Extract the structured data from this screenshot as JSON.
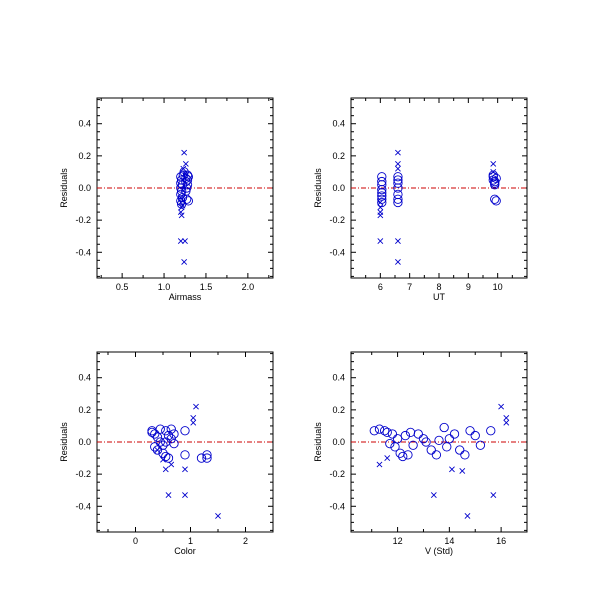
{
  "colors": {
    "markers": "#0000cc",
    "reference_line": "#cc0000",
    "axes": "#000000"
  },
  "chart_data": [
    {
      "type": "scatter",
      "title": "",
      "xlabel": "Airmass",
      "ylabel": "Residuals",
      "xlim": [
        0.2,
        2.3
      ],
      "ylim": [
        -0.56,
        0.56
      ],
      "xticks": [
        0.5,
        1.0,
        1.5,
        2.0
      ],
      "xticklabels": [
        "0.5",
        "1.0",
        "1.5",
        "2.0"
      ],
      "yticks": [
        -0.4,
        -0.2,
        0.0,
        0.2,
        0.4
      ],
      "yticklabels": [
        "-0.4",
        "-0.2",
        "0.0",
        "0.2",
        "0.4"
      ],
      "reference_line": 0.0,
      "series": [
        {
          "marker": "circle",
          "points": [
            [
              1.2,
              0.07
            ],
            [
              1.21,
              0.05
            ],
            [
              1.2,
              0.03
            ],
            [
              1.22,
              0.02
            ],
            [
              1.2,
              0.0
            ],
            [
              1.21,
              -0.02
            ],
            [
              1.2,
              -0.04
            ],
            [
              1.22,
              -0.06
            ],
            [
              1.2,
              -0.08
            ],
            [
              1.21,
              -0.1
            ],
            [
              1.26,
              0.06
            ],
            [
              1.28,
              0.08
            ],
            [
              1.26,
              0.04
            ],
            [
              1.28,
              0.02
            ],
            [
              1.27,
              0.0
            ],
            [
              1.26,
              -0.02
            ],
            [
              1.28,
              0.05
            ],
            [
              1.29,
              0.07
            ],
            [
              1.24,
              0.1
            ],
            [
              1.27,
              -0.07
            ],
            [
              1.29,
              -0.08
            ],
            [
              1.23,
              0.08
            ]
          ]
        },
        {
          "marker": "x",
          "points": [
            [
              1.2,
              -0.06
            ],
            [
              1.2,
              -0.09
            ],
            [
              1.21,
              -0.12
            ],
            [
              1.2,
              -0.15
            ],
            [
              1.21,
              -0.17
            ],
            [
              1.22,
              -0.11
            ],
            [
              1.2,
              -0.33
            ],
            [
              1.25,
              -0.33
            ],
            [
              1.24,
              -0.46
            ],
            [
              1.24,
              0.22
            ],
            [
              1.26,
              0.15
            ],
            [
              1.23,
              0.12
            ],
            [
              1.25,
              0.09
            ]
          ]
        }
      ]
    },
    {
      "type": "scatter",
      "title": "",
      "xlabel": "UT",
      "ylabel": "Residuals",
      "xlim": [
        5.0,
        11.0
      ],
      "ylim": [
        -0.56,
        0.56
      ],
      "xticks": [
        6,
        7,
        8,
        9,
        10
      ],
      "xticklabels": [
        "6",
        "7",
        "8",
        "9",
        "10"
      ],
      "yticks": [
        -0.4,
        -0.2,
        0.0,
        0.2,
        0.4
      ],
      "yticklabels": [
        "-0.4",
        "-0.2",
        "0.0",
        "0.2",
        "0.4"
      ],
      "reference_line": 0.0,
      "series": [
        {
          "marker": "circle",
          "points": [
            [
              6.05,
              0.07
            ],
            [
              6.05,
              0.04
            ],
            [
              6.05,
              0.02
            ],
            [
              6.05,
              -0.01
            ],
            [
              6.05,
              -0.03
            ],
            [
              6.05,
              -0.05
            ],
            [
              6.05,
              -0.07
            ],
            [
              6.05,
              -0.09
            ],
            [
              6.6,
              0.07
            ],
            [
              6.6,
              0.05
            ],
            [
              6.6,
              0.03
            ],
            [
              6.6,
              0.0
            ],
            [
              6.6,
              -0.04
            ],
            [
              6.6,
              -0.07
            ],
            [
              6.6,
              -0.09
            ],
            [
              9.85,
              0.07
            ],
            [
              9.85,
              0.05
            ],
            [
              9.9,
              0.03
            ],
            [
              9.9,
              0.02
            ],
            [
              9.95,
              0.06
            ],
            [
              9.85,
              0.08
            ],
            [
              9.9,
              -0.07
            ],
            [
              9.95,
              -0.08
            ],
            [
              9.9,
              0.04
            ]
          ]
        },
        {
          "marker": "x",
          "points": [
            [
              6.0,
              -0.09
            ],
            [
              6.0,
              -0.12
            ],
            [
              6.0,
              -0.15
            ],
            [
              6.0,
              -0.17
            ],
            [
              6.0,
              -0.33
            ],
            [
              6.6,
              -0.33
            ],
            [
              6.6,
              -0.46
            ],
            [
              6.6,
              0.22
            ],
            [
              6.6,
              0.15
            ],
            [
              6.6,
              0.12
            ],
            [
              9.85,
              0.15
            ],
            [
              9.85,
              0.1
            ]
          ]
        }
      ]
    },
    {
      "type": "scatter",
      "title": "",
      "xlabel": "Color",
      "ylabel": "Residuals",
      "xlim": [
        -0.7,
        2.5
      ],
      "ylim": [
        -0.56,
        0.56
      ],
      "xticks": [
        0,
        1,
        2
      ],
      "xticklabels": [
        "0",
        "1",
        "2"
      ],
      "yticks": [
        -0.4,
        -0.2,
        0.0,
        0.2,
        0.4
      ],
      "yticklabels": [
        "-0.4",
        "-0.2",
        "0.0",
        "0.2",
        "0.4"
      ],
      "reference_line": 0.0,
      "series": [
        {
          "marker": "circle",
          "points": [
            [
              0.3,
              0.07
            ],
            [
              0.35,
              0.05
            ],
            [
              0.4,
              0.03
            ],
            [
              0.45,
              0.0
            ],
            [
              0.5,
              -0.02
            ],
            [
              0.55,
              0.07
            ],
            [
              0.6,
              0.04
            ],
            [
              0.65,
              0.02
            ],
            [
              0.7,
              -0.01
            ],
            [
              0.35,
              -0.03
            ],
            [
              0.4,
              -0.05
            ],
            [
              0.5,
              -0.07
            ],
            [
              0.55,
              -0.09
            ],
            [
              0.6,
              -0.1
            ],
            [
              0.65,
              0.08
            ],
            [
              0.45,
              0.08
            ],
            [
              0.3,
              0.06
            ],
            [
              0.55,
              0.0
            ],
            [
              0.7,
              0.05
            ],
            [
              0.9,
              0.07
            ],
            [
              0.9,
              -0.08
            ],
            [
              1.2,
              -0.1
            ],
            [
              1.3,
              -0.08
            ],
            [
              1.3,
              -0.1
            ]
          ]
        },
        {
          "marker": "x",
          "points": [
            [
              0.4,
              -0.05
            ],
            [
              0.5,
              -0.11
            ],
            [
              0.55,
              -0.17
            ],
            [
              0.65,
              -0.14
            ],
            [
              0.6,
              -0.33
            ],
            [
              0.9,
              -0.17
            ],
            [
              0.9,
              -0.33
            ],
            [
              1.05,
              0.15
            ],
            [
              1.1,
              0.22
            ],
            [
              1.05,
              0.12
            ],
            [
              1.5,
              -0.46
            ]
          ]
        }
      ]
    },
    {
      "type": "scatter",
      "title": "",
      "xlabel": "V (Std)",
      "ylabel": "Residuals",
      "xlim": [
        10.2,
        17.0
      ],
      "ylim": [
        -0.56,
        0.56
      ],
      "xticks": [
        12,
        14,
        16
      ],
      "xticklabels": [
        "12",
        "14",
        "16"
      ],
      "yticks": [
        -0.4,
        -0.2,
        0.0,
        0.2,
        0.4
      ],
      "yticklabels": [
        "-0.4",
        "-0.2",
        "0.0",
        "0.2",
        "0.4"
      ],
      "reference_line": 0.0,
      "series": [
        {
          "marker": "circle",
          "points": [
            [
              11.1,
              0.07
            ],
            [
              11.3,
              0.08
            ],
            [
              11.5,
              0.07
            ],
            [
              11.6,
              0.06
            ],
            [
              11.8,
              0.05
            ],
            [
              12.0,
              0.02
            ],
            [
              11.7,
              -0.01
            ],
            [
              11.9,
              -0.03
            ],
            [
              12.1,
              -0.07
            ],
            [
              12.2,
              -0.09
            ],
            [
              12.4,
              -0.08
            ],
            [
              12.5,
              0.06
            ],
            [
              12.3,
              0.04
            ],
            [
              12.8,
              0.05
            ],
            [
              13.0,
              0.02
            ],
            [
              13.1,
              0.0
            ],
            [
              13.3,
              -0.05
            ],
            [
              13.5,
              -0.08
            ],
            [
              13.6,
              0.01
            ],
            [
              13.8,
              0.09
            ],
            [
              14.0,
              0.02
            ],
            [
              14.2,
              0.05
            ],
            [
              14.4,
              -0.05
            ],
            [
              14.6,
              -0.08
            ],
            [
              14.8,
              0.07
            ],
            [
              15.0,
              0.04
            ],
            [
              15.2,
              -0.02
            ],
            [
              15.6,
              0.07
            ],
            [
              13.9,
              -0.03
            ],
            [
              12.6,
              -0.02
            ]
          ]
        },
        {
          "marker": "x",
          "points": [
            [
              11.3,
              -0.14
            ],
            [
              11.6,
              -0.1
            ],
            [
              13.4,
              -0.33
            ],
            [
              14.1,
              -0.17
            ],
            [
              14.5,
              -0.18
            ],
            [
              14.7,
              -0.46
            ],
            [
              15.7,
              -0.33
            ],
            [
              16.0,
              0.22
            ],
            [
              16.2,
              0.15
            ],
            [
              16.2,
              0.12
            ]
          ]
        }
      ]
    }
  ]
}
